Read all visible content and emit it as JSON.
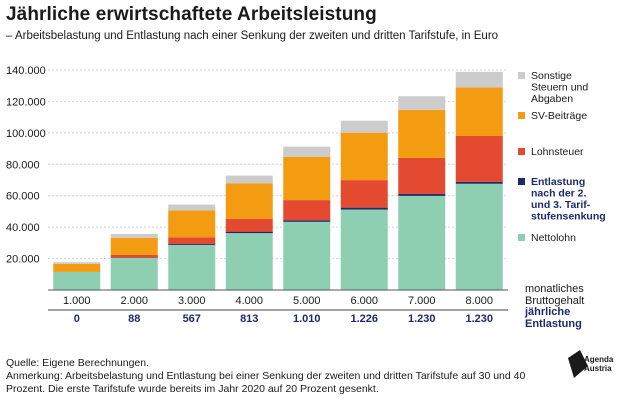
{
  "header": {
    "title": "Jährliche erwirtschaftete Arbeitsleistung",
    "subtitle": "– Arbeitsbelastung und Entlastung nach einer Senkung der zweiten und dritten Tarifstufe, in Euro"
  },
  "footer": {
    "source": "Quelle: Eigene Berechnungen.",
    "note": "Anmerkung: Arbeitsbelastung und Entlastung bei einer Senkung der zweiten und dritten Tarifstufe auf 30 und 40 Prozent. Die erste Tarifstufe wurde bereits im Jahr 2020 auf 20 Prozent gesenkt."
  },
  "logo": {
    "line1": "Agenda",
    "line2": "Austria"
  },
  "chart_data": {
    "type": "bar",
    "stacked": true,
    "categories": [
      "1.000",
      "2.000",
      "3.000",
      "4.000",
      "5.000",
      "6.000",
      "7.000",
      "8.000"
    ],
    "category_axis_label": "monatliches Bruttogehalt",
    "relief_values": [
      "0",
      "88",
      "567",
      "813",
      "1.010",
      "1.226",
      "1.230",
      "1.230"
    ],
    "relief_axis_label": "jährliche Entlastung",
    "y_ticks": [
      "20.000",
      "40.000",
      "60.000",
      "80.000",
      "100.000",
      "120.000",
      "140.000"
    ],
    "ylim": [
      0,
      140000
    ],
    "grid": true,
    "legend_position": "right",
    "series": [
      {
        "name": "Nettolohn",
        "color": "#8ecfb2",
        "values": [
          11500,
          20500,
          28700,
          36200,
          43400,
          51200,
          59900,
          67600
        ]
      },
      {
        "name": "Entlastung nach der 2. und 3. Tarifstufensenkung",
        "color": "#1f2a6b",
        "values": [
          0,
          88,
          567,
          813,
          1010,
          1226,
          1230,
          1230
        ]
      },
      {
        "name": "Lohnsteuer",
        "color": "#e34a2f",
        "values": [
          0,
          1700,
          4300,
          8300,
          12800,
          17500,
          22900,
          29200
        ]
      },
      {
        "name": "SV-Beiträge",
        "color": "#f39c12",
        "values": [
          5100,
          10900,
          17000,
          22500,
          27600,
          30200,
          30500,
          30800
        ]
      },
      {
        "name": "Sonstige Steuern und Abgaben",
        "color": "#cccccc",
        "values": [
          1100,
          2500,
          3800,
          5000,
          6400,
          7600,
          8800,
          10000
        ]
      }
    ]
  }
}
